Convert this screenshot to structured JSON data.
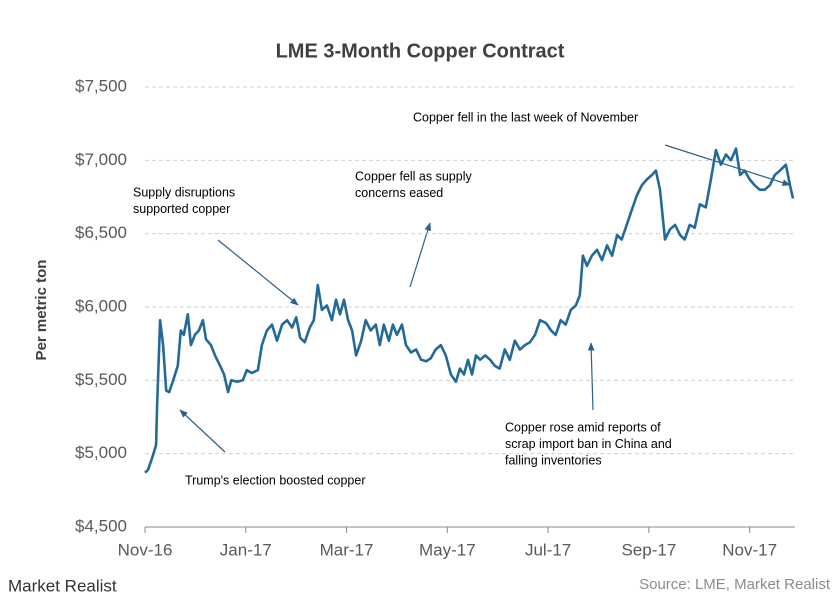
{
  "chart_data": {
    "type": "line",
    "title": "LME 3-Month Copper Contract",
    "y_label": "Per metric ton",
    "source": "Source: LME, Market Realist",
    "logo": "Market Realist",
    "color": "#246a98",
    "grid": true,
    "xlim": [
      0,
      12.9
    ],
    "xticks": [
      {
        "value": 0,
        "label": "Nov-16"
      },
      {
        "value": 2,
        "label": "Jan-17"
      },
      {
        "value": 4,
        "label": "Mar-17"
      },
      {
        "value": 6,
        "label": "May-17"
      },
      {
        "value": 8,
        "label": "Jul-17"
      },
      {
        "value": 10,
        "label": "Sep-17"
      },
      {
        "value": 12,
        "label": "Nov-17"
      }
    ],
    "ylim": [
      4500,
      7500
    ],
    "yticks": [
      {
        "value": 4500,
        "label": "$4,500"
      },
      {
        "value": 5000,
        "label": "$5,000"
      },
      {
        "value": 5500,
        "label": "$5,500"
      },
      {
        "value": 6000,
        "label": "$6,000"
      },
      {
        "value": 6500,
        "label": "$6,500"
      },
      {
        "value": 7000,
        "label": "$7,000"
      },
      {
        "value": 7500,
        "label": "$7,500"
      }
    ],
    "x": [
      0,
      0.06,
      0.14,
      0.22,
      0.24,
      0.3,
      0.36,
      0.42,
      0.48,
      0.56,
      0.65,
      0.71,
      0.77,
      0.85,
      0.91,
      0.99,
      1.07,
      1.15,
      1.21,
      1.31,
      1.39,
      1.49,
      1.57,
      1.65,
      1.71,
      1.83,
      1.94,
      2.02,
      2.12,
      2.24,
      2.32,
      2.42,
      2.52,
      2.62,
      2.72,
      2.82,
      2.92,
      3.0,
      3.08,
      3.17,
      3.27,
      3.35,
      3.43,
      3.51,
      3.61,
      3.71,
      3.79,
      3.87,
      3.95,
      4.03,
      4.11,
      4.19,
      4.29,
      4.38,
      4.48,
      4.58,
      4.66,
      4.74,
      4.84,
      4.92,
      5.0,
      5.1,
      5.18,
      5.28,
      5.38,
      5.48,
      5.58,
      5.67,
      5.77,
      5.87,
      5.97,
      6.07,
      6.17,
      6.25,
      6.33,
      6.41,
      6.49,
      6.57,
      6.65,
      6.75,
      6.85,
      6.94,
      7.04,
      7.14,
      7.24,
      7.34,
      7.44,
      7.54,
      7.64,
      7.74,
      7.84,
      7.96,
      8.06,
      8.15,
      8.25,
      8.35,
      8.45,
      8.55,
      8.63,
      8.69,
      8.77,
      8.87,
      8.97,
      9.07,
      9.17,
      9.27,
      9.37,
      9.46,
      9.56,
      9.66,
      9.76,
      9.86,
      9.96,
      10.06,
      10.14,
      10.22,
      10.32,
      10.42,
      10.52,
      10.62,
      10.71,
      10.81,
      10.91,
      11.01,
      11.13,
      11.23,
      11.33,
      11.43,
      11.53,
      11.63,
      11.73,
      11.81,
      11.9,
      12.0,
      12.1,
      12.2,
      12.3,
      12.4,
      12.5,
      12.6,
      12.72,
      12.8,
      12.86
    ],
    "values": [
      4870,
      4890,
      4970,
      5060,
      5330,
      5910,
      5740,
      5430,
      5420,
      5500,
      5600,
      5840,
      5810,
      5950,
      5740,
      5810,
      5840,
      5910,
      5780,
      5740,
      5670,
      5600,
      5540,
      5420,
      5500,
      5490,
      5500,
      5570,
      5550,
      5570,
      5740,
      5840,
      5880,
      5770,
      5880,
      5910,
      5860,
      5930,
      5790,
      5760,
      5860,
      5910,
      6150,
      5980,
      6010,
      5910,
      6050,
      5950,
      6050,
      5910,
      5840,
      5670,
      5770,
      5910,
      5840,
      5880,
      5740,
      5880,
      5770,
      5880,
      5810,
      5880,
      5740,
      5690,
      5710,
      5640,
      5630,
      5650,
      5710,
      5740,
      5670,
      5540,
      5490,
      5580,
      5540,
      5640,
      5540,
      5670,
      5640,
      5670,
      5640,
      5600,
      5580,
      5710,
      5640,
      5770,
      5710,
      5740,
      5760,
      5810,
      5910,
      5890,
      5840,
      5810,
      5910,
      5880,
      5980,
      6010,
      6080,
      6350,
      6280,
      6350,
      6390,
      6320,
      6420,
      6350,
      6490,
      6460,
      6560,
      6660,
      6760,
      6830,
      6870,
      6900,
      6930,
      6800,
      6460,
      6530,
      6560,
      6490,
      6460,
      6560,
      6540,
      6700,
      6680,
      6870,
      7070,
      6970,
      7040,
      7000,
      7080,
      6900,
      6930,
      6870,
      6830,
      6800,
      6800,
      6830,
      6900,
      6930,
      6970,
      6830,
      6740
    ],
    "annotations": [
      {
        "lines": [
          "Supply disruptions",
          "supported copper"
        ]
      },
      {
        "lines": [
          "Copper fell as supply",
          "concerns eased"
        ]
      },
      {
        "lines": [
          "Copper fell in the last week of November"
        ]
      },
      {
        "lines": [
          "Trump's election boosted copper"
        ]
      },
      {
        "lines": [
          "Copper rose amid reports of",
          "scrap import ban in China and",
          "falling inventories"
        ]
      }
    ]
  }
}
